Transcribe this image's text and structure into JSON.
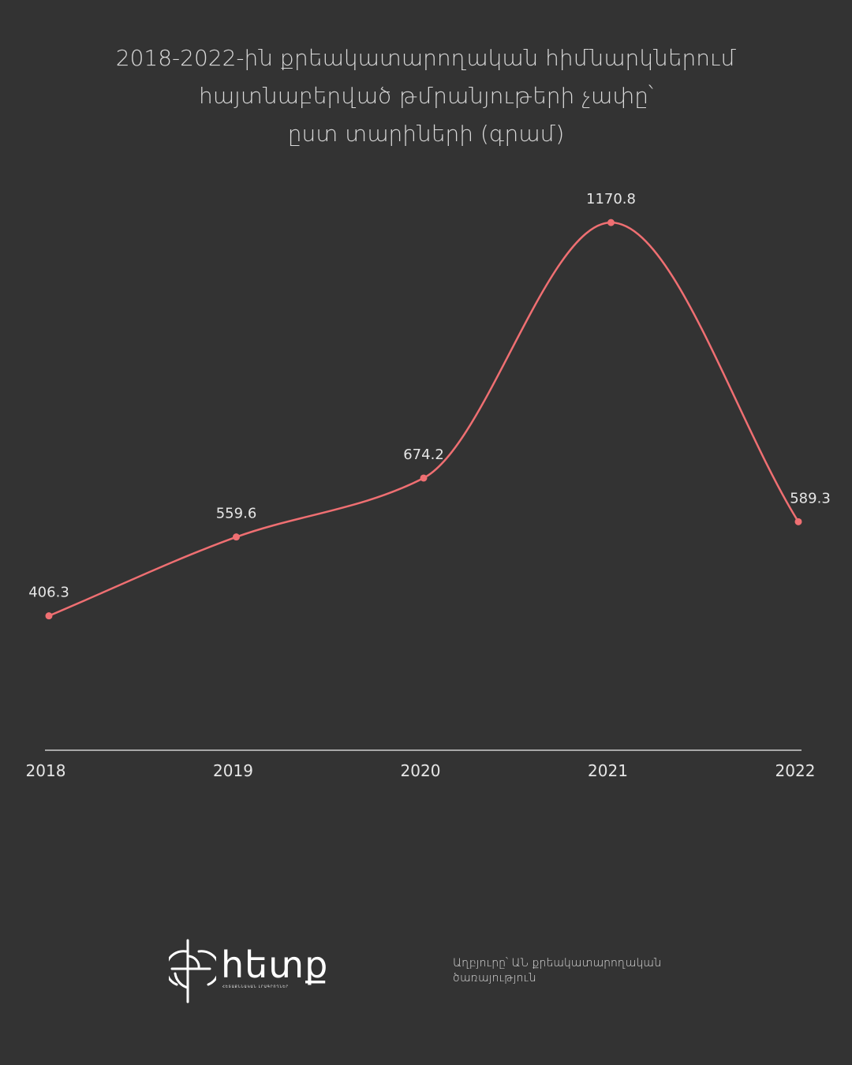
{
  "chart_data": {
    "type": "line",
    "title_lines": [
      "2018-2022-ին քրեակատարողական հիմնարկներում",
      "հայտնաբերված թմրանյութերի չափը՝",
      "ըստ տարիների (գրամ)"
    ],
    "categories": [
      "2018",
      "2019",
      "2020",
      "2021",
      "2022"
    ],
    "series": [
      {
        "values": [
          406.3,
          559.6,
          674.2,
          1170.8,
          589.3
        ],
        "value_labels": [
          "406.3",
          "559.6",
          "674.2",
          "1170.8",
          "589.3"
        ]
      }
    ],
    "smooth": true,
    "grid": false,
    "legend": "none",
    "colors": {
      "line": "#ef6f72",
      "axis": "#cfcfcf",
      "text": "#e6e6e6",
      "background": "#333333"
    }
  },
  "logo": {
    "wordmark": "հետք",
    "tagline": "ՀԵՏԱՔՆՆԱԿԱՆ ԼՐԱԳՐՈՂՆԵՐ",
    "icon": "globe-crosshair-icon"
  },
  "source": {
    "text_line1": "Աղբյուրը՝ ԱՆ քրեակատարողական",
    "text_line2": "ծառայություն"
  }
}
